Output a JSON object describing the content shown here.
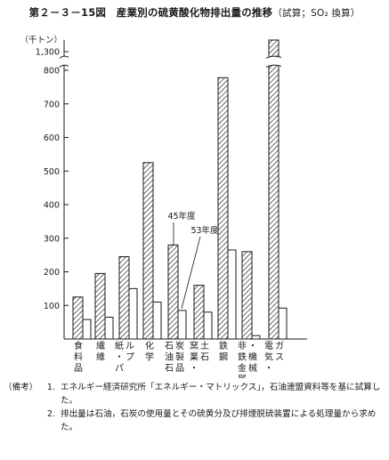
{
  "title": {
    "main": "第２－３－15図　産業別の硫黄酸化物排出量の推移",
    "sub": "（試算；SO₂ 換算）"
  },
  "chart_data": {
    "type": "bar",
    "y_unit": "（千トン）",
    "y_ticks": [
      "100",
      "200",
      "300",
      "400",
      "500",
      "600",
      "700",
      "800"
    ],
    "y_top_tick": "1,300",
    "ylim": [
      0,
      820
    ],
    "y_break": true,
    "categories": [
      "食料品",
      "繊維",
      "紙・パルプ",
      "化学",
      "石油石炭製品",
      "窯業・土石",
      "鉄鋼",
      "非鉄金属・機械",
      "電気・ガス"
    ],
    "series": [
      {
        "name": "45年度",
        "values": [
          125,
          195,
          245,
          525,
          280,
          160,
          778,
          260,
          1330
        ]
      },
      {
        "name": "53年度",
        "values": [
          58,
          65,
          150,
          110,
          85,
          80,
          265,
          10,
          92
        ]
      }
    ],
    "annotations": [
      "45年度",
      "53年度"
    ]
  },
  "notes": {
    "label": "（備考）",
    "items": [
      {
        "num": "1.",
        "text": "エネルギー経済研究所「エネルギー・マトリックス」，石油連盟資料等を基に試算した。"
      },
      {
        "num": "2.",
        "text": "排出量は石油，石炭の使用量とその硫黄分及び排煙脱硫装置による処理量から求めた。"
      }
    ]
  },
  "colors": {
    "ink": "#1a1a1a",
    "background": "#ffffff"
  }
}
